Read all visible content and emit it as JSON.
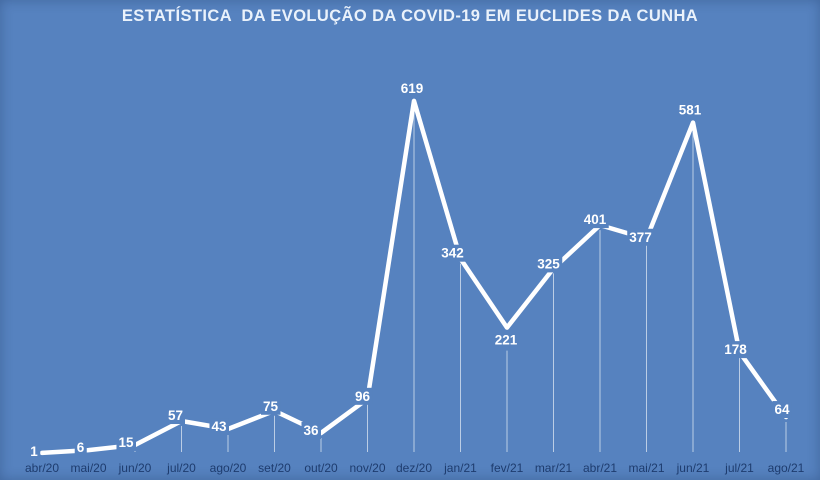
{
  "title": "ESTATÍSTICA  DA EVOLUÇÃO DA COVID-19 EM EUCLIDES DA CUNHA",
  "colors": {
    "background": "#5682BF",
    "title_text": "#EAF2FB",
    "line": "#FFFFFF",
    "data_label": "#FFFFFF",
    "axis_label": "#1E3C6E",
    "drop_line": "rgba(255,255,255,0.6)"
  },
  "chart_data": {
    "type": "line",
    "title": "ESTATÍSTICA  DA EVOLUÇÃO DA COVID-19 EM EUCLIDES DA CUNHA",
    "categories": [
      "abr/20",
      "mai/20",
      "jun/20",
      "jul/20",
      "ago/20",
      "set/20",
      "out/20",
      "nov/20",
      "dez/20",
      "jan/21",
      "fev/21",
      "mar/21",
      "abr/21",
      "mai/21",
      "jun/21",
      "jul/21",
      "ago/21"
    ],
    "values": [
      1,
      6,
      15,
      57,
      43,
      75,
      36,
      96,
      619,
      342,
      221,
      325,
      401,
      377,
      581,
      178,
      64
    ],
    "xlabel": "",
    "ylabel": "",
    "ylim": [
      0,
      650
    ],
    "grid": false,
    "legend": false,
    "data_labels": true,
    "drop_lines": true,
    "marker": "none"
  }
}
